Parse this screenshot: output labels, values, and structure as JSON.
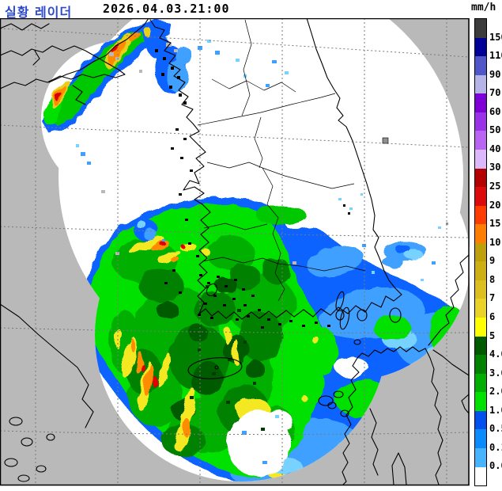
{
  "header": {
    "title": "실황 레이더",
    "title_color": "#2d49cc",
    "datetime": "2026.04.03.21:00",
    "unit": "mm/h"
  },
  "legend": {
    "unit": "mm/h",
    "values": [
      "150",
      "110",
      "90",
      "70",
      "60",
      "50",
      "40",
      "30",
      "25",
      "20",
      "15",
      "10",
      "9",
      "8",
      "7",
      "6",
      "5",
      "4.0",
      "3.0",
      "2.0",
      "1.0",
      "0.5",
      "0.1",
      "0.0"
    ],
    "colors": [
      "#3c3c3c",
      "#000096",
      "#5055c8",
      "#b4b4e6",
      "#7d00d7",
      "#9932e8",
      "#b964f2",
      "#dcb9fa",
      "#b40000",
      "#dc0a0a",
      "#ff3c00",
      "#ff7d00",
      "#bea00a",
      "#cdaf14",
      "#dcbe1e",
      "#ebd228",
      "#ffff00",
      "#005a00",
      "#008200",
      "#00af00",
      "#00e100",
      "#0050f0",
      "#0a8cff",
      "#46b4ff",
      "#ffffff"
    ]
  },
  "map": {
    "background_color": "#b9b9b9",
    "coverage_color": "#ffffff",
    "coastline_color": "#000000",
    "gridline_color": "#7a7a7a",
    "echo_palette": {
      "rain_0_01": "#78d2ff",
      "rain_01_05": "#3fa0ff",
      "rain_05_1": "#0a64ff",
      "rain_1_2": "#00e100",
      "rain_2_3": "#00af00",
      "rain_3_4": "#008200",
      "rain_4_5": "#005a00",
      "rain_5_6": "#ffff00",
      "rain_6_8": "#ecd41e",
      "rain_10_15": "#ff8c00",
      "rain_15_25": "#e10000",
      "clutter_gray": "#b9b9b9"
    }
  }
}
